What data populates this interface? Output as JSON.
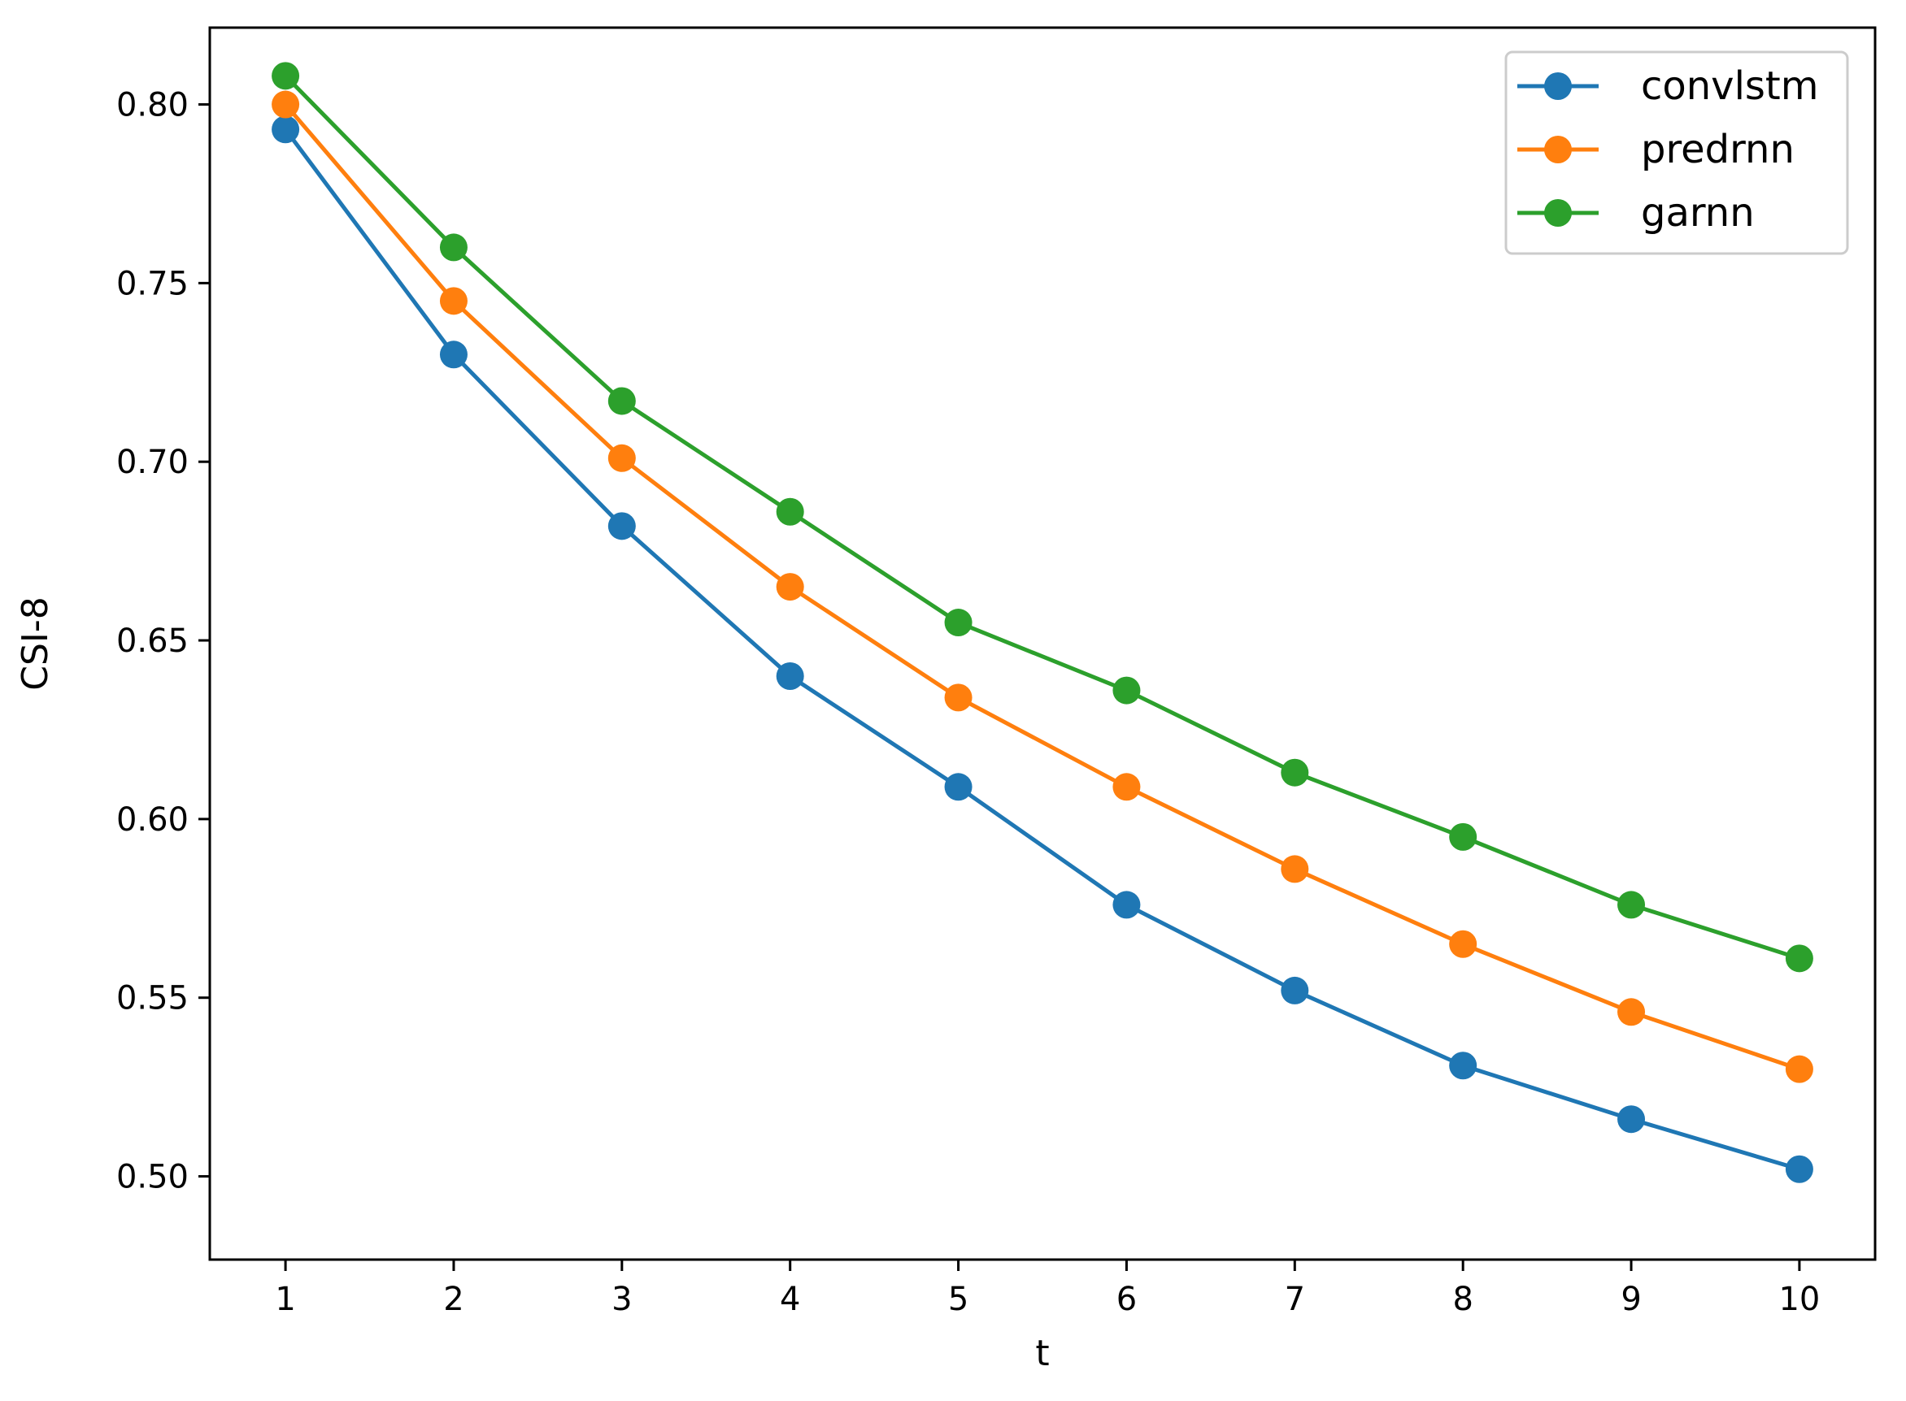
{
  "chart_data": {
    "type": "line",
    "title": "",
    "xlabel": "t",
    "ylabel": "CSI-8",
    "x": [
      1,
      2,
      3,
      4,
      5,
      6,
      7,
      8,
      9,
      10
    ],
    "xlim": [
      0.55,
      10.45
    ],
    "ylim": [
      0.4767,
      0.8215
    ],
    "xticks": [
      "1",
      "2",
      "3",
      "4",
      "5",
      "6",
      "7",
      "8",
      "9",
      "10"
    ],
    "yticks": [
      "0.50",
      "0.55",
      "0.60",
      "0.65",
      "0.70",
      "0.75",
      "0.80"
    ],
    "grid": false,
    "legend": "top-right",
    "series": [
      {
        "name": "convlstm",
        "color": "#1f77b4",
        "marker": "circle",
        "values": [
          0.793,
          0.73,
          0.682,
          0.64,
          0.609,
          0.576,
          0.552,
          0.531,
          0.516,
          0.502
        ]
      },
      {
        "name": "predrnn",
        "color": "#ff7f0e",
        "marker": "circle",
        "values": [
          0.8,
          0.745,
          0.701,
          0.665,
          0.634,
          0.609,
          0.586,
          0.565,
          0.546,
          0.53
        ]
      },
      {
        "name": "garnn",
        "color": "#2ca02c",
        "marker": "circle",
        "values": [
          0.808,
          0.76,
          0.717,
          0.686,
          0.655,
          0.636,
          0.613,
          0.595,
          0.576,
          0.561
        ]
      }
    ]
  }
}
